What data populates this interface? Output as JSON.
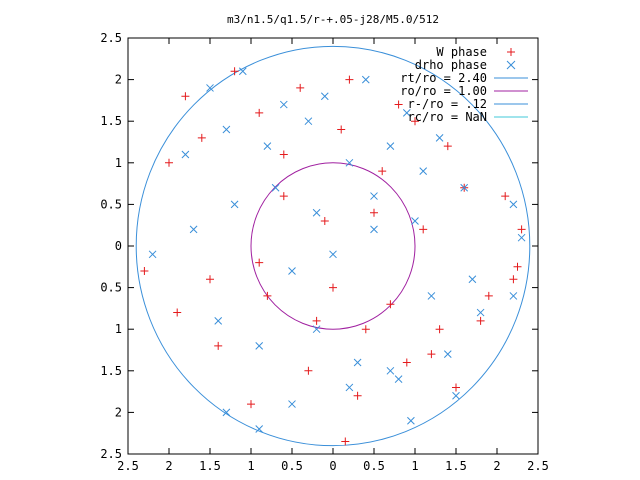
{
  "chart_data": {
    "type": "scatter",
    "title": "m3/n1.5/q1.5/r-+.05-j28/M5.0/512",
    "xlabel": "",
    "ylabel": "",
    "xlim": [
      -2.5,
      2.5
    ],
    "ylim": [
      -2.5,
      2.5
    ],
    "x_ticks": [
      -2.5,
      -2,
      -1.5,
      -1,
      -0.5,
      0,
      0.5,
      1,
      1.5,
      2,
      2.5
    ],
    "y_ticks": [
      -2.5,
      -2,
      -1.5,
      -1,
      -0.5,
      0,
      0.5,
      1,
      1.5,
      2,
      2.5
    ],
    "x_tick_labels": [
      "2.5",
      "2",
      "1.5",
      "1",
      "0.5",
      "0",
      "0.5",
      "1",
      "1.5",
      "2",
      "2.5"
    ],
    "y_tick_labels": [
      "2.5",
      "2",
      "1.5",
      "1",
      "0.5",
      "0",
      "0.5",
      "1",
      "1.5",
      "2",
      "2.5"
    ],
    "grid": false,
    "legend_position": "top-right",
    "legend": [
      {
        "label": "W phase",
        "marker": "+",
        "color": "#e41a1c"
      },
      {
        "label": "drho phase",
        "marker": "x",
        "color": "#3a8fd9"
      },
      {
        "label": "rt/ro = 2.40",
        "marker": "line",
        "color": "#3a8fd9"
      },
      {
        "label": "ro/ro = 1.00",
        "marker": "line",
        "color": "#a020a0"
      },
      {
        "label": "r-/ro = .12",
        "marker": "line",
        "color": "#3a8fd9"
      },
      {
        "label": "rc/ro = NaN",
        "marker": "line",
        "color": "#40c8d8"
      }
    ],
    "circles": [
      {
        "name": "rt/ro",
        "r": 2.4,
        "color": "#3a8fd9"
      },
      {
        "name": "ro/ro",
        "r": 1.0,
        "color": "#a020a0"
      }
    ],
    "series": [
      {
        "name": "W phase",
        "marker": "+",
        "color": "#e41a1c",
        "x": [
          -1.8,
          -1.2,
          -0.9,
          -0.4,
          0.2,
          0.8,
          1.4,
          -2.0,
          -1.6,
          -0.6,
          0.1,
          0.6,
          1.0,
          1.6,
          2.1,
          2.3,
          1.9,
          -2.3,
          -1.9,
          -1.4,
          -0.8,
          -0.2,
          0.4,
          1.2,
          1.8,
          -1.0,
          -0.3,
          0.3,
          0.9,
          1.5,
          2.2,
          -0.6,
          -0.1,
          0.5,
          1.1,
          -1.5,
          -0.9,
          0.0,
          0.7,
          1.3,
          2.25,
          0.15
        ],
        "y": [
          1.8,
          2.1,
          1.6,
          1.9,
          2.0,
          1.7,
          1.2,
          1.0,
          1.3,
          1.1,
          1.4,
          0.9,
          1.5,
          0.7,
          0.6,
          0.2,
          -0.6,
          -0.3,
          -0.8,
          -1.2,
          -0.6,
          -0.9,
          -1.0,
          -1.3,
          -0.9,
          -1.9,
          -1.5,
          -1.8,
          -1.4,
          -1.7,
          -0.4,
          0.6,
          0.3,
          0.4,
          0.2,
          -0.4,
          -0.2,
          -0.5,
          -0.7,
          -1.0,
          -0.25,
          -2.35
        ]
      },
      {
        "name": "drho phase",
        "marker": "x",
        "color": "#3a8fd9",
        "x": [
          -1.5,
          -1.1,
          -0.6,
          -0.1,
          0.4,
          0.9,
          1.3,
          -1.8,
          -1.3,
          -0.8,
          -0.3,
          0.2,
          0.7,
          1.1,
          1.6,
          2.2,
          2.3,
          1.7,
          1.0,
          0.5,
          -0.2,
          -0.7,
          -1.2,
          -1.7,
          -2.2,
          -0.5,
          0.0,
          0.5,
          1.2,
          1.8,
          -1.4,
          -0.9,
          -0.2,
          0.3,
          0.8,
          1.4,
          -1.3,
          -0.9,
          -0.5,
          0.2,
          0.7,
          1.5,
          2.2,
          0.95
        ],
        "y": [
          1.9,
          2.1,
          1.7,
          1.8,
          2.0,
          1.6,
          1.3,
          1.1,
          1.4,
          1.2,
          1.5,
          1.0,
          1.2,
          0.9,
          0.7,
          0.5,
          0.1,
          -0.4,
          0.3,
          0.6,
          0.4,
          0.7,
          0.5,
          0.2,
          -0.1,
          -0.3,
          -0.1,
          0.2,
          -0.6,
          -0.8,
          -0.9,
          -1.2,
          -1.0,
          -1.4,
          -1.6,
          -1.3,
          -2.0,
          -2.2,
          -1.9,
          -1.7,
          -1.5,
          -1.8,
          -0.6,
          -2.1
        ]
      }
    ]
  }
}
